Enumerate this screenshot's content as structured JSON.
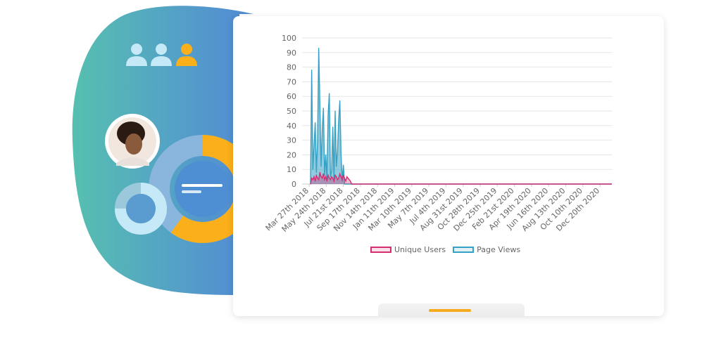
{
  "colors": {
    "blob_start": "#56C0B0",
    "blob_end": "#5289D6",
    "accent_orange": "#FBAF1A",
    "light_blue": "#C6E9F7",
    "unique_users": "#D62D71",
    "page_views": "#35A1C5",
    "grid": "#E6E6E6",
    "axis_text": "#666666"
  },
  "decor": {
    "icons": [
      "user-icon",
      "user-icon",
      "user-icon-highlighted"
    ],
    "avatar": "woman-avatar",
    "donut_large_filled": 0.6,
    "donut_small_filled": 0.75
  },
  "chart_data": {
    "type": "line",
    "x_ticks": [
      "Mar 27th 2018",
      "May 24th 2018",
      "Jul 21st 2018",
      "Sep 17th 2018",
      "Nov 14th 2018",
      "Jan 11th 2019",
      "Mar 10th 2019",
      "May 7th 2019",
      "Jul 4th 2019",
      "Aug 31st 2019",
      "Oct 28th 2019",
      "Dec 25th 2019",
      "Feb 21st 2020",
      "Apr 19th 2020",
      "Jun 16th 2020",
      "Aug 13th 2020",
      "Oct 10th 2020",
      "Dec 20th 2020"
    ],
    "ylim": [
      0,
      100
    ],
    "y_ticks": [
      0,
      10,
      20,
      30,
      40,
      50,
      60,
      70,
      80,
      90,
      100
    ],
    "grid": true,
    "legend_position": "bottom",
    "series": [
      {
        "name": "Unique Users",
        "values": [
          0,
          4,
          3,
          5,
          2,
          6,
          4,
          3,
          8,
          5,
          4,
          7,
          3,
          5,
          2,
          6,
          4,
          3,
          5,
          4,
          2,
          6,
          5,
          3,
          4,
          7,
          5,
          3,
          6,
          4,
          2,
          5,
          4,
          3,
          2,
          0,
          0
        ]
      },
      {
        "name": "Page Views",
        "values": [
          0,
          78,
          10,
          26,
          42,
          8,
          29,
          93,
          54,
          12,
          37,
          52,
          6,
          20,
          3,
          47,
          62,
          5,
          9,
          39,
          3,
          50,
          12,
          22,
          44,
          57,
          21,
          2,
          13,
          0,
          0,
          0,
          0,
          0,
          0,
          0,
          0
        ]
      }
    ]
  }
}
